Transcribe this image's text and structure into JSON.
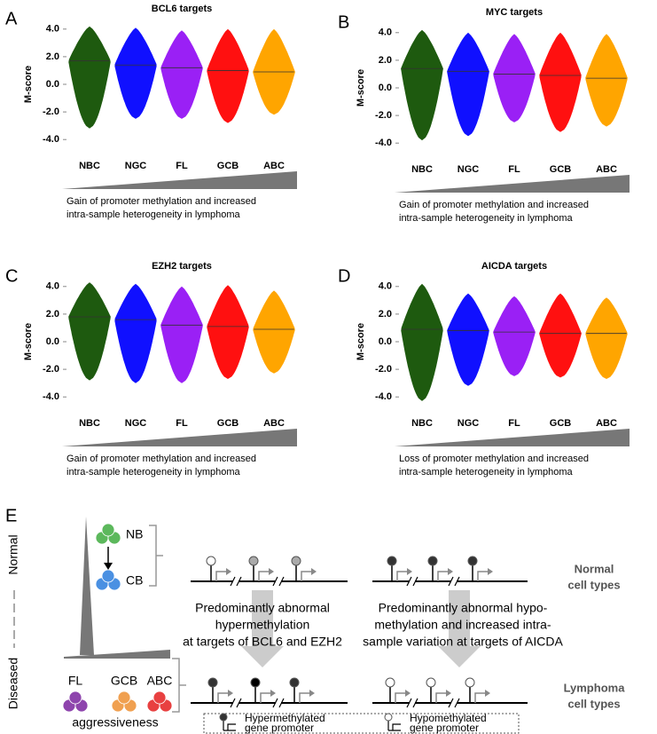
{
  "chart_data": [
    {
      "type": "violin",
      "panel": "A",
      "title": "BCL6 targets",
      "ylabel": "M-score",
      "categories": [
        "NBC",
        "NGC",
        "FL",
        "GCB",
        "ABC"
      ],
      "colors": [
        "#1e5a0f",
        "#1010ff",
        "#9a20f5",
        "#ff1010",
        "#ffa500"
      ],
      "values": [
        1.7,
        1.4,
        1.2,
        1.0,
        0.9
      ],
      "high": [
        4.2,
        4.1,
        3.9,
        4.0,
        4.0
      ],
      "low": [
        -3.2,
        -2.5,
        -2.5,
        -2.8,
        -2.2
      ],
      "ylim": [
        -4.5,
        4.5
      ],
      "yticks": [
        {
          "value": 4,
          "label": "4.0"
        },
        {
          "value": 2,
          "label": "2.0"
        },
        {
          "value": 0,
          "label": "0.0"
        },
        {
          "value": -2,
          "label": "-2.0"
        },
        {
          "value": -4,
          "label": "-4.0"
        }
      ],
      "wedge": "up",
      "caption": [
        "Gain of promoter methylation and increased",
        "intra-sample heterogeneity in lymphoma"
      ]
    },
    {
      "type": "violin",
      "panel": "B",
      "title": "MYC targets",
      "ylabel": "M-score",
      "categories": [
        "NBC",
        "NGC",
        "FL",
        "GCB",
        "ABC"
      ],
      "colors": [
        "#1e5a0f",
        "#1010ff",
        "#9a20f5",
        "#ff1010",
        "#ffa500"
      ],
      "values": [
        1.4,
        1.2,
        1.0,
        0.9,
        0.7
      ],
      "high": [
        4.2,
        4.0,
        3.9,
        4.0,
        3.9
      ],
      "low": [
        -3.8,
        -3.5,
        -2.5,
        -3.2,
        -2.8
      ],
      "ylim": [
        -4.5,
        4.5
      ],
      "yticks": [
        {
          "value": 4,
          "label": "4.0"
        },
        {
          "value": 2,
          "label": "2.0"
        },
        {
          "value": 0,
          "label": "0.0"
        },
        {
          "value": -2,
          "label": "-2.0"
        },
        {
          "value": -4,
          "label": "-4.0"
        }
      ],
      "wedge": "up",
      "caption": [
        "Gain of promoter methylation and increased",
        "intra-sample heterogeneity in lymphoma"
      ]
    },
    {
      "type": "violin",
      "panel": "C",
      "title": "EZH2 targets",
      "ylabel": "M-score",
      "categories": [
        "NBC",
        "NGC",
        "FL",
        "GCB",
        "ABC"
      ],
      "colors": [
        "#1e5a0f",
        "#1010ff",
        "#9a20f5",
        "#ff1010",
        "#ffa500"
      ],
      "values": [
        1.8,
        1.6,
        1.2,
        1.1,
        0.9
      ],
      "high": [
        4.3,
        4.2,
        4.0,
        4.1,
        3.7
      ],
      "low": [
        -2.8,
        -3.0,
        -3.0,
        -2.7,
        -2.3
      ],
      "ylim": [
        -4.5,
        4.5
      ],
      "yticks": [
        {
          "value": 4,
          "label": "4.0"
        },
        {
          "value": 2,
          "label": "2.0"
        },
        {
          "value": 0,
          "label": "0.0"
        },
        {
          "value": -2,
          "label": "-2.0"
        },
        {
          "value": -4,
          "label": "-4.0"
        }
      ],
      "wedge": "up",
      "caption": [
        "Gain of promoter methylation and increased",
        "intra-sample heterogeneity in lymphoma"
      ]
    },
    {
      "type": "violin",
      "panel": "D",
      "title": "AICDA targets",
      "ylabel": "M-score",
      "categories": [
        "NBC",
        "NGC",
        "FL",
        "GCB",
        "ABC"
      ],
      "colors": [
        "#1e5a0f",
        "#1010ff",
        "#9a20f5",
        "#ff1010",
        "#ffa500"
      ],
      "values": [
        0.9,
        0.8,
        0.7,
        0.6,
        0.6
      ],
      "high": [
        4.2,
        3.5,
        3.3,
        3.5,
        3.2
      ],
      "low": [
        -4.3,
        -3.2,
        -2.5,
        -2.6,
        -2.7
      ],
      "ylim": [
        -4.5,
        4.5
      ],
      "yticks": [
        {
          "value": 4,
          "label": "4.0"
        },
        {
          "value": 2,
          "label": "2.0"
        },
        {
          "value": 0,
          "label": "0.0"
        },
        {
          "value": -2,
          "label": "-2.0"
        },
        {
          "value": -4,
          "label": "-4.0"
        }
      ],
      "wedge": "up",
      "caption": [
        "Loss of promoter methylation and increased",
        "intra-sample heterogeneity in lymphoma"
      ]
    }
  ],
  "diagram": {
    "panel": "E",
    "normal": "Normal",
    "diseased": "Diseased",
    "cells": [
      "NB",
      "CB",
      "FL",
      "GCB",
      "ABC"
    ],
    "aggressiveness": "aggressiveness",
    "left_text": [
      "Predominantly abnormal",
      "hypermethylation",
      "at targets of BCL6 and EZH2"
    ],
    "right_text": [
      "Predominantly abnormal hypo-",
      "methylation and increased intra-",
      "sample variation at targets of AICDA"
    ],
    "normal_row": [
      "Normal",
      "cell types"
    ],
    "lymphoma_row": [
      "Lymphoma",
      "cell types"
    ],
    "legend": [
      [
        "Hypermethylated",
        "gene promoter"
      ],
      [
        "Hypomethylated",
        "gene promoter"
      ]
    ]
  }
}
